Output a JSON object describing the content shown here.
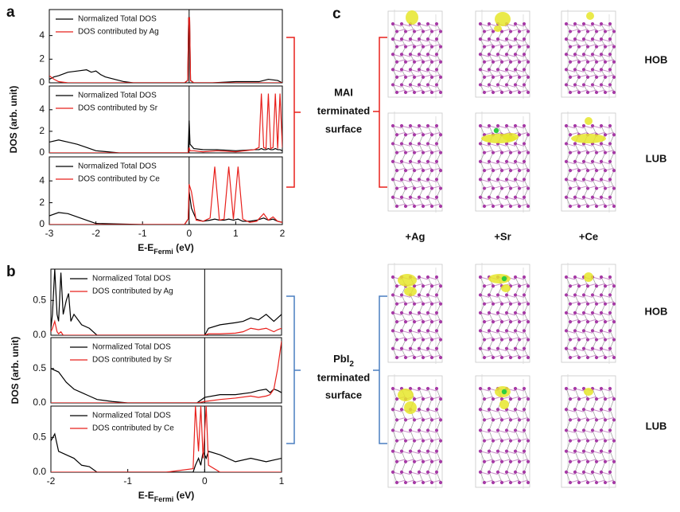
{
  "chart_data": [
    {
      "type": "line",
      "panel": "a",
      "legend": "upper left",
      "xlim": [
        -3,
        2
      ],
      "ylim": [
        0,
        6.2
      ],
      "yticks": [
        0,
        2,
        4
      ],
      "vline": 0,
      "x": [
        -3,
        -2.9,
        -2.8,
        -2.6,
        -2.4,
        -2.2,
        -2.1,
        -2.0,
        -1.9,
        -1.8,
        -1.6,
        -1.4,
        -1.2,
        -1.0,
        -0.5,
        -0.1,
        -0.03,
        -0.01,
        0,
        0.01,
        0.03,
        0.1,
        0.5,
        1.0,
        1.5,
        1.7,
        1.9,
        2.0
      ],
      "series": [
        {
          "name": "Normalized Total DOS",
          "color": "#000000",
          "values": [
            0.3,
            0.5,
            0.6,
            0.9,
            1.0,
            1.1,
            0.9,
            1.0,
            0.7,
            0.5,
            0.3,
            0.1,
            0,
            0,
            0,
            0,
            0.2,
            5.5,
            5.5,
            5.5,
            0.2,
            0,
            0,
            0.1,
            0.1,
            0.3,
            0.2,
            0
          ]
        },
        {
          "name": "DOS contributed by Ag",
          "color": "#e8201c",
          "values": [
            0.6,
            0.3,
            0.1,
            0,
            0,
            0,
            0,
            0,
            0,
            0,
            0,
            0,
            0,
            0,
            0,
            0,
            0.2,
            5.5,
            5.5,
            5.5,
            0.2,
            0,
            0,
            0,
            0,
            0,
            0,
            0
          ]
        }
      ]
    },
    {
      "type": "line",
      "legend": "upper left",
      "ylabel": "DOS (arb. unit)",
      "xlim": [
        -3,
        2
      ],
      "ylim": [
        0,
        6.2
      ],
      "yticks": [
        0,
        2,
        4
      ],
      "vline": 0,
      "x": [
        -3,
        -2.8,
        -2.6,
        -2.4,
        -2.2,
        -2.0,
        -1.5,
        -1.0,
        -0.5,
        -0.02,
        0,
        0.02,
        0.1,
        0.3,
        0.6,
        1.0,
        1.4,
        1.5,
        1.55,
        1.6,
        1.65,
        1.7,
        1.75,
        1.8,
        1.85,
        1.9,
        1.95,
        2.0
      ],
      "series": [
        {
          "name": "Normalized Total DOS",
          "color": "#000000",
          "values": [
            1.0,
            1.2,
            1.0,
            0.8,
            0.5,
            0.2,
            0,
            0,
            0,
            0,
            3.0,
            0.8,
            0.4,
            0.3,
            0.3,
            0.2,
            0.3,
            0.3,
            0.4,
            0.3,
            0.3,
            0.4,
            0.3,
            0.3,
            0.4,
            0.3,
            0.3,
            0.2
          ]
        },
        {
          "name": "DOS contributed by Sr",
          "color": "#e8201c",
          "values": [
            0,
            0,
            0,
            0,
            0,
            0,
            0,
            0,
            0,
            0,
            0.5,
            0.2,
            0.2,
            0.1,
            0.2,
            0.1,
            0.3,
            0.5,
            5.5,
            0.5,
            0.4,
            5.5,
            0.4,
            0.5,
            5.5,
            0.4,
            5.5,
            0.5
          ]
        }
      ]
    },
    {
      "type": "line",
      "legend": "upper left",
      "xlabel": {
        "text": "E-E",
        "subscript": "Fermi",
        "unit": " (eV)"
      },
      "xlim": [
        -3,
        2
      ],
      "ylim": [
        0,
        6.2
      ],
      "yticks": [
        0,
        2,
        4
      ],
      "xticks": [
        -3,
        -2,
        -1,
        0,
        1,
        2
      ],
      "vline": 0,
      "x": [
        -3,
        -2.8,
        -2.6,
        -2.4,
        -2.2,
        -2.0,
        -1.0,
        -0.1,
        -0.02,
        0,
        0.05,
        0.15,
        0.3,
        0.45,
        0.55,
        0.65,
        0.75,
        0.85,
        0.95,
        1.05,
        1.15,
        1.3,
        1.45,
        1.6,
        1.7,
        1.8,
        1.9,
        2.0
      ],
      "series": [
        {
          "name": "Normalized Total DOS",
          "color": "#000000",
          "values": [
            0.8,
            1.1,
            1.0,
            0.7,
            0.4,
            0.1,
            0,
            0,
            0.5,
            3.0,
            1.5,
            0.5,
            0.3,
            0.4,
            0.5,
            0.4,
            0.4,
            0.5,
            0.4,
            0.5,
            0.3,
            0.3,
            0.4,
            0.6,
            0.4,
            0.5,
            0.3,
            0.2
          ]
        },
        {
          "name": "DOS contributed by Ce",
          "color": "#e8201c",
          "values": [
            0,
            0,
            0,
            0,
            0,
            0,
            0,
            0,
            0.5,
            3.7,
            3.0,
            0.4,
            0.3,
            0.6,
            5.3,
            0.4,
            0.5,
            5.3,
            0.5,
            5.3,
            0.5,
            0.2,
            0.3,
            1.0,
            0.4,
            0.7,
            0.3,
            0.2
          ]
        }
      ]
    },
    {
      "type": "line",
      "panel": "b",
      "legend": "upper center",
      "xlim": [
        -2,
        1
      ],
      "ylim": [
        0,
        0.95
      ],
      "yticks": [
        {
          "value": 0,
          "label": "0.0"
        },
        0.5
      ],
      "vline": 0,
      "x": [
        -2,
        -1.98,
        -1.95,
        -1.92,
        -1.9,
        -1.87,
        -1.84,
        -1.8,
        -1.77,
        -1.74,
        -1.7,
        -1.6,
        -1.5,
        -1.4,
        -1.0,
        -0.5,
        0,
        0.05,
        0.2,
        0.4,
        0.5,
        0.6,
        0.7,
        0.8,
        0.9,
        0.95,
        1.0
      ],
      "series": [
        {
          "name": "Normalized Total DOS",
          "color": "#000000",
          "values": [
            0.1,
            0.3,
            0.95,
            0.3,
            0.2,
            0.9,
            0.3,
            0.5,
            0.6,
            0.2,
            0.3,
            0.15,
            0.1,
            0,
            0,
            0,
            0,
            0.1,
            0.15,
            0.18,
            0.2,
            0.25,
            0.22,
            0.3,
            0.2,
            0.25,
            0.3
          ]
        },
        {
          "name": "DOS contributed by Ag",
          "color": "#e8201c",
          "values": [
            0.05,
            0.1,
            0.2,
            0.05,
            0.02,
            0.05,
            0,
            0,
            0,
            0,
            0,
            0,
            0,
            0,
            0,
            0,
            0,
            0.02,
            0.02,
            0.03,
            0.05,
            0.1,
            0.08,
            0.1,
            0.05,
            0.08,
            0.1
          ]
        }
      ]
    },
    {
      "type": "line",
      "legend": "upper center",
      "ylabel": "DOS (arb. unit)",
      "xlim": [
        -2,
        1
      ],
      "ylim": [
        0,
        0.95
      ],
      "yticks": [
        {
          "value": 0,
          "label": "0.0"
        },
        0.5
      ],
      "vline": 0,
      "x": [
        -2,
        -1.9,
        -1.8,
        -1.7,
        -1.6,
        -1.5,
        -1.4,
        -1.2,
        -1.0,
        -0.5,
        -0.1,
        0,
        0.2,
        0.4,
        0.6,
        0.7,
        0.8,
        0.85,
        0.9,
        0.95,
        1.0
      ],
      "series": [
        {
          "name": "Normalized Total DOS",
          "color": "#000000",
          "values": [
            0.5,
            0.45,
            0.3,
            0.2,
            0.15,
            0.1,
            0.05,
            0.02,
            0,
            0,
            0,
            0.08,
            0.12,
            0.12,
            0.15,
            0.18,
            0.2,
            0.15,
            0.2,
            0.18,
            0.15
          ]
        },
        {
          "name": "DOS contributed by Sr",
          "color": "#e8201c",
          "values": [
            0,
            0,
            0,
            0,
            0,
            0,
            0,
            0,
            0,
            0,
            0,
            0.02,
            0.05,
            0.07,
            0.1,
            0.08,
            0.1,
            0.12,
            0.2,
            0.5,
            0.9
          ]
        }
      ]
    },
    {
      "type": "line",
      "legend": "upper center",
      "xlabel": {
        "text": "E-E",
        "subscript": "Fermi",
        "unit": " (eV)"
      },
      "xlim": [
        -2,
        1
      ],
      "ylim": [
        0,
        0.95
      ],
      "yticks": [
        {
          "value": 0,
          "label": "0.0"
        },
        0.5
      ],
      "xticks": [
        -2,
        -1,
        0,
        1
      ],
      "vline": 0,
      "x": [
        -2,
        -1.95,
        -1.9,
        -1.8,
        -1.7,
        -1.6,
        -1.5,
        -1.4,
        -1.0,
        -0.5,
        -0.15,
        -0.12,
        -0.08,
        -0.05,
        -0.02,
        0.02,
        0.05,
        0.2,
        0.4,
        0.6,
        0.8,
        1.0
      ],
      "series": [
        {
          "name": "Normalized Total DOS",
          "color": "#000000",
          "values": [
            0.45,
            0.55,
            0.3,
            0.25,
            0.2,
            0.1,
            0.08,
            0,
            0,
            0,
            0,
            0.1,
            0.2,
            0.1,
            0.3,
            0.2,
            0.3,
            0.25,
            0.15,
            0.2,
            0.15,
            0.2
          ]
        },
        {
          "name": "DOS contributed by Ce",
          "color": "#e8201c",
          "values": [
            0,
            0,
            0,
            0,
            0,
            0,
            0,
            0,
            0,
            0,
            0.05,
            0.95,
            0.3,
            0.95,
            0.2,
            0.95,
            0.1,
            0,
            0,
            0,
            0,
            0
          ]
        }
      ]
    }
  ],
  "structures": {
    "label": "c",
    "columns": [
      "+Ag",
      "+Sr",
      "+Ce"
    ],
    "groups": [
      {
        "title": [
          "MAI",
          "terminated",
          "surface"
        ],
        "rows": [
          "HOB",
          "LUB"
        ]
      },
      {
        "title": [
          {
            "text": "PbI",
            "subscript": "2"
          },
          "terminated",
          "surface"
        ],
        "rows": [
          "HOB",
          "LUB"
        ]
      }
    ]
  }
}
